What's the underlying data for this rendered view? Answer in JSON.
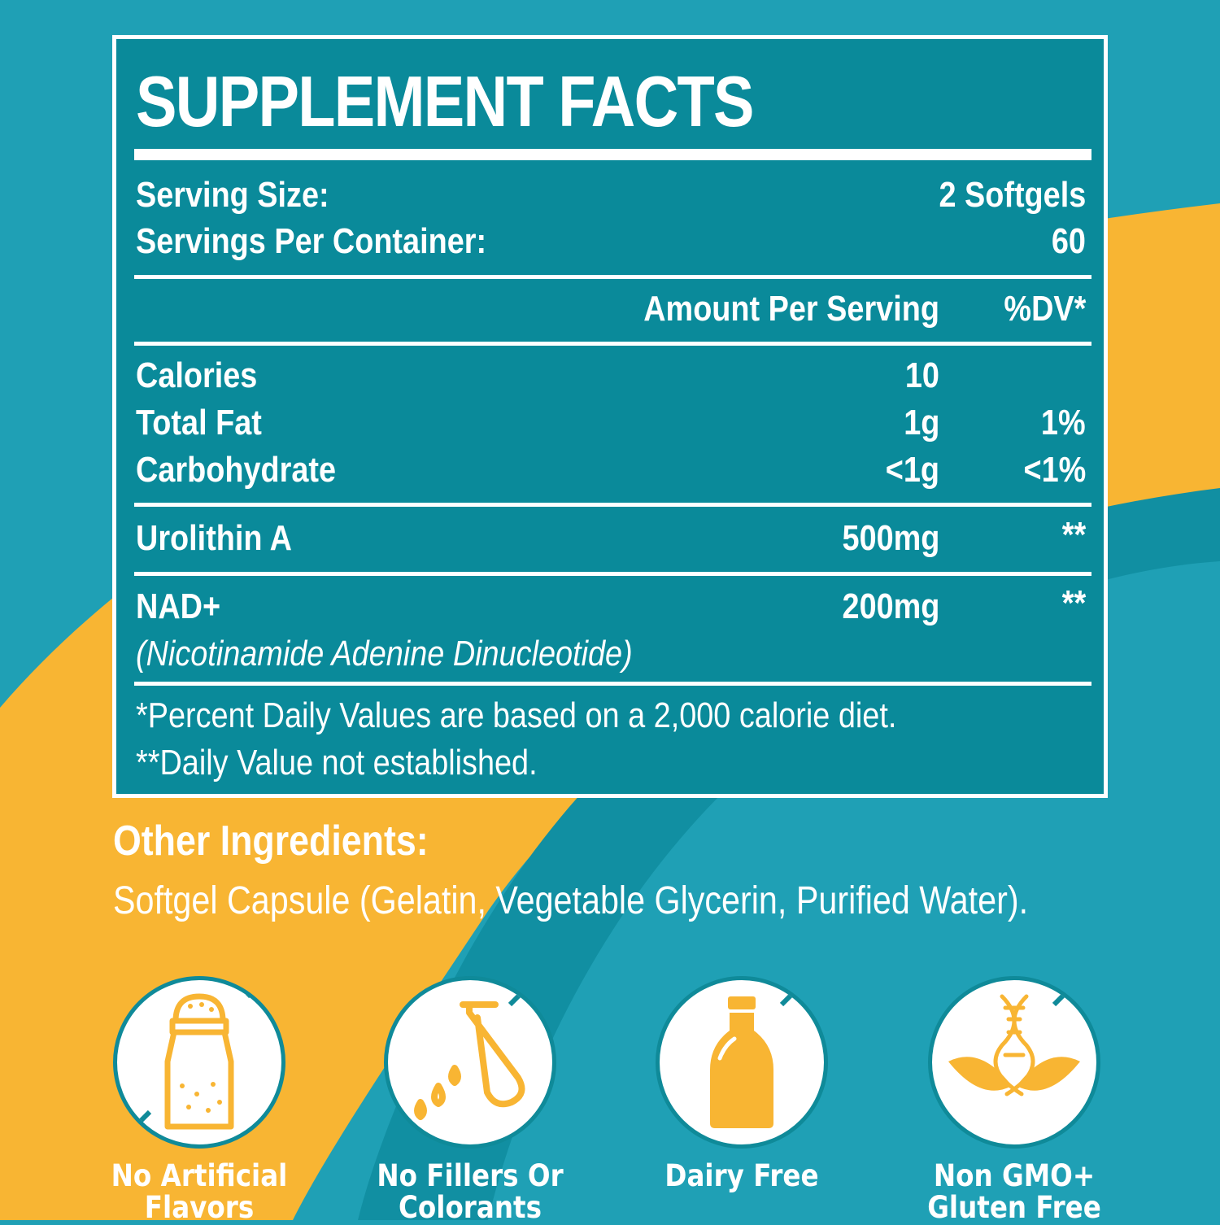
{
  "title": "SUPPLEMENT FACTS",
  "serving": {
    "size_label": "Serving Size:",
    "size_value": "2 Softgels",
    "per_container_label": "Servings Per Container:",
    "per_container_value": "60"
  },
  "columns": {
    "amount": "Amount Per Serving",
    "dv": "%DV*"
  },
  "rows": [
    {
      "name": "Calories",
      "amount": "10",
      "dv": ""
    },
    {
      "name": "Total Fat",
      "amount": "1g",
      "dv": "1%"
    },
    {
      "name": "Carbohydrate",
      "amount": "<1g",
      "dv": "<1%"
    },
    {
      "name": "Urolithin A",
      "amount": "500mg",
      "dv": "**"
    },
    {
      "name": "NAD+",
      "subtitle": "(Nicotinamide Adenine Dinucleotide)",
      "amount": "200mg",
      "dv": "**"
    }
  ],
  "footnotes": [
    "*Percent Daily Values are based on a 2,000 calorie diet.",
    "**Daily Value not established."
  ],
  "other_ingredients": {
    "title": "Other Ingredients:",
    "text": "Softgel Capsule (Gelatin, Vegetable Glycerin, Purified Water)."
  },
  "badges": [
    {
      "icon": "salt-shaker-icon",
      "line1": "No Artificial",
      "line2": "Flavors"
    },
    {
      "icon": "test-tube-icon",
      "line1": "No Fillers Or",
      "line2": "Colorants"
    },
    {
      "icon": "milk-bottle-icon",
      "line1": "Dairy Free",
      "line2": ""
    },
    {
      "icon": "dna-leaf-icon",
      "line1": "Non GMO+",
      "line2": "Gluten Free"
    }
  ],
  "colors": {
    "teal_background": "#1fa0b5",
    "panel_teal": "#0a8a9a",
    "accent_yellow": "#f8b533",
    "text": "#ffffff"
  }
}
